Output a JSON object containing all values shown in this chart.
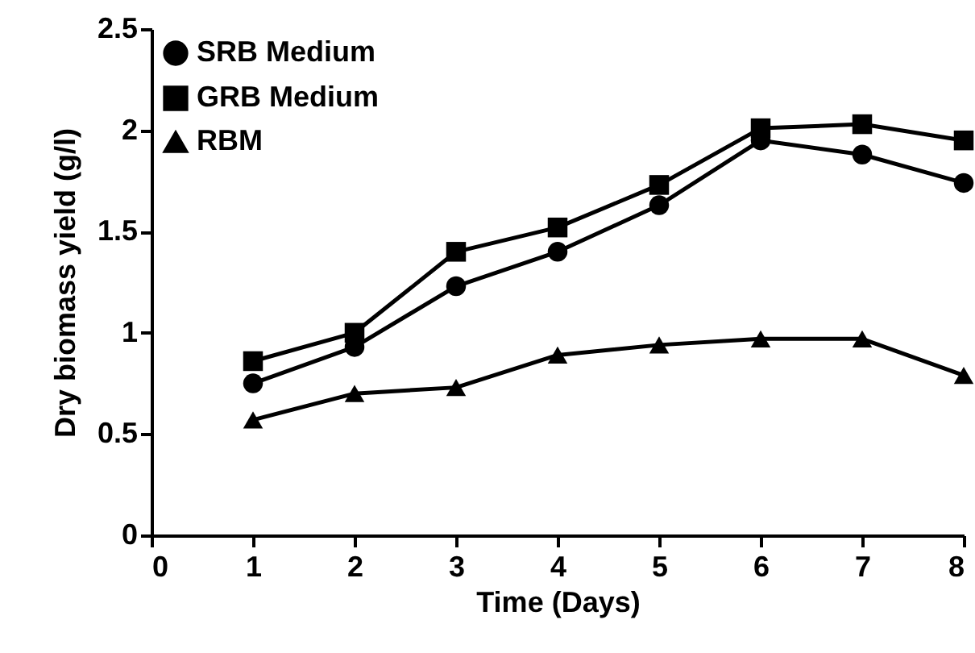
{
  "chart_data": {
    "type": "line",
    "xlabel": "Time (Days)",
    "ylabel": "Dry biomass yield (g/l)",
    "x": [
      1,
      2,
      3,
      4,
      5,
      6,
      7,
      8
    ],
    "xlim": [
      0,
      8
    ],
    "xticks": [
      0,
      1,
      2,
      3,
      4,
      5,
      6,
      7,
      8
    ],
    "ylim": [
      0,
      2.5
    ],
    "yticks": [
      0,
      0.5,
      1,
      1.5,
      2,
      2.5
    ],
    "grid": false,
    "legend": "top left",
    "series": [
      {
        "name": "SRB Medium",
        "color": "#000000",
        "marker": "circle",
        "values": [
          0.75,
          0.93,
          1.23,
          1.4,
          1.63,
          1.95,
          1.88,
          1.74
        ]
      },
      {
        "name": "GRB Medium",
        "color": "#000000",
        "marker": "square",
        "values": [
          0.86,
          1.0,
          1.4,
          1.52,
          1.73,
          2.01,
          2.03,
          1.95
        ]
      },
      {
        "name": "RBM",
        "color": "#000000",
        "marker": "triangle",
        "values": [
          0.57,
          0.7,
          0.73,
          0.89,
          0.94,
          0.97,
          0.97,
          0.79
        ]
      }
    ]
  }
}
